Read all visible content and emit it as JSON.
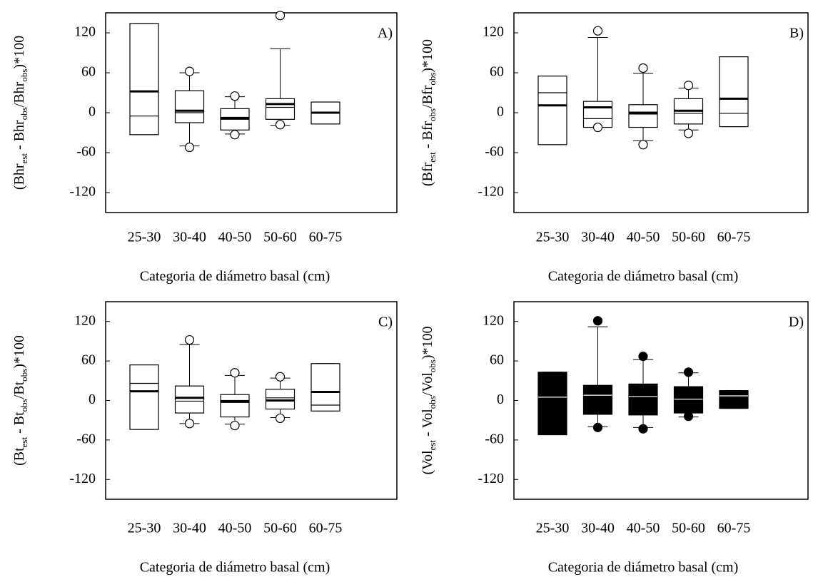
{
  "chart_data": [
    {
      "type": "box",
      "label": "A)",
      "ylabel": [
        "(Bhr",
        "est",
        " - Bhr",
        "obs",
        "/Bhr",
        "obs",
        ")*100"
      ],
      "xlabel": "Categoria de diámetro basal (cm)",
      "categories": [
        "25-30",
        "30-40",
        "40-50",
        "50-60",
        "60-75"
      ],
      "ylim": [
        -150,
        150
      ],
      "yticks": [
        -120,
        -60,
        0,
        60,
        120
      ],
      "filled": false,
      "boxes": [
        {
          "min": -33,
          "q1": -33,
          "median": -5,
          "mean": 32,
          "q3": 134,
          "max": 134,
          "outliers": []
        },
        {
          "min": -50,
          "q1": -15,
          "median": 0,
          "mean": 3,
          "q3": 33,
          "max": 60,
          "outliers": [
            62,
            -52
          ]
        },
        {
          "min": -32,
          "q1": -26,
          "median": -7,
          "mean": -9,
          "q3": 6,
          "max": 24,
          "outliers": [
            25,
            -33
          ]
        },
        {
          "min": -19,
          "q1": -10,
          "median": 8,
          "mean": 13,
          "q3": 21,
          "max": 96,
          "outliers": [
            146,
            -18
          ]
        },
        {
          "min": -17,
          "q1": -17,
          "median": 0,
          "mean": 0,
          "q3": 16,
          "max": 16,
          "outliers": []
        }
      ]
    },
    {
      "type": "box",
      "label": "B)",
      "ylabel": [
        "(Bfr",
        "est",
        " - Bfr",
        "obs",
        "/Bfr",
        "obs",
        ")*100"
      ],
      "xlabel": "Categoria de diámetro basal (cm)",
      "categories": [
        "25-30",
        "30-40",
        "40-50",
        "50-60",
        "60-75"
      ],
      "ylim": [
        -150,
        150
      ],
      "yticks": [
        -120,
        -60,
        0,
        60,
        120
      ],
      "filled": false,
      "boxes": [
        {
          "min": -48,
          "q1": -48,
          "median": 30,
          "mean": 11,
          "q3": 55,
          "max": 55,
          "outliers": []
        },
        {
          "min": -22,
          "q1": -22,
          "median": -9,
          "mean": 8,
          "q3": 17,
          "max": 113,
          "outliers": [
            123,
            -22
          ]
        },
        {
          "min": -42,
          "q1": -22,
          "median": -2,
          "mean": 0,
          "q3": 12,
          "max": 59,
          "outliers": [
            67,
            -48
          ]
        },
        {
          "min": -26,
          "q1": -17,
          "median": -1,
          "mean": 3,
          "q3": 21,
          "max": 37,
          "outliers": [
            41,
            -31
          ]
        },
        {
          "min": -21,
          "q1": -21,
          "median": -1,
          "mean": 21,
          "q3": 84,
          "max": 84,
          "outliers": []
        }
      ]
    },
    {
      "type": "box",
      "label": "C)",
      "ylabel": [
        "(Bt",
        "est",
        " - Bt",
        "obs",
        "/Bt",
        "obs",
        ")*100"
      ],
      "xlabel": "Categoria de diámetro basal (cm)",
      "categories": [
        "25-30",
        "30-40",
        "40-50",
        "50-60",
        "60-75"
      ],
      "ylim": [
        -150,
        150
      ],
      "yticks": [
        -120,
        -60,
        0,
        60,
        120
      ],
      "filled": false,
      "boxes": [
        {
          "min": -44,
          "q1": -44,
          "median": 26,
          "mean": 14,
          "q3": 54,
          "max": 54,
          "outliers": []
        },
        {
          "min": -35,
          "q1": -19,
          "median": -1,
          "mean": 4,
          "q3": 22,
          "max": 85,
          "outliers": [
            92,
            -35
          ]
        },
        {
          "min": -36,
          "q1": -25,
          "median": 0,
          "mean": -2,
          "q3": 9,
          "max": 38,
          "outliers": [
            42,
            -38
          ]
        },
        {
          "min": -26,
          "q1": -13,
          "median": 4,
          "mean": 0,
          "q3": 17,
          "max": 34,
          "outliers": [
            36,
            -27
          ]
        },
        {
          "min": -16,
          "q1": -16,
          "median": -7,
          "mean": 13,
          "q3": 56,
          "max": 56,
          "outliers": []
        }
      ]
    },
    {
      "type": "box",
      "label": "D)",
      "ylabel": [
        "(Vol",
        "est",
        " - Vol",
        "obs",
        "/Vol",
        "obs",
        ")*100"
      ],
      "xlabel": "Categoria de diámetro basal (cm)",
      "categories": [
        "25-30",
        "30-40",
        "40-50",
        "50-60",
        "60-75"
      ],
      "ylim": [
        -150,
        150
      ],
      "yticks": [
        -120,
        -60,
        0,
        60,
        120
      ],
      "filled": true,
      "boxes": [
        {
          "min": -52,
          "q1": -52,
          "median": 5,
          "q3": 43,
          "max": 43,
          "outliers": []
        },
        {
          "min": -40,
          "q1": -21,
          "median": 8,
          "q3": 23,
          "max": 112,
          "outliers": [
            121,
            -41
          ]
        },
        {
          "min": -41,
          "q1": -22,
          "median": 6,
          "q3": 25,
          "max": 62,
          "outliers": [
            67,
            -43
          ]
        },
        {
          "min": -25,
          "q1": -19,
          "median": 2,
          "q3": 21,
          "max": 42,
          "outliers": [
            43,
            -24
          ]
        },
        {
          "min": -12,
          "q1": -12,
          "median": 7,
          "q3": 15,
          "max": 15,
          "outliers": []
        }
      ]
    }
  ]
}
